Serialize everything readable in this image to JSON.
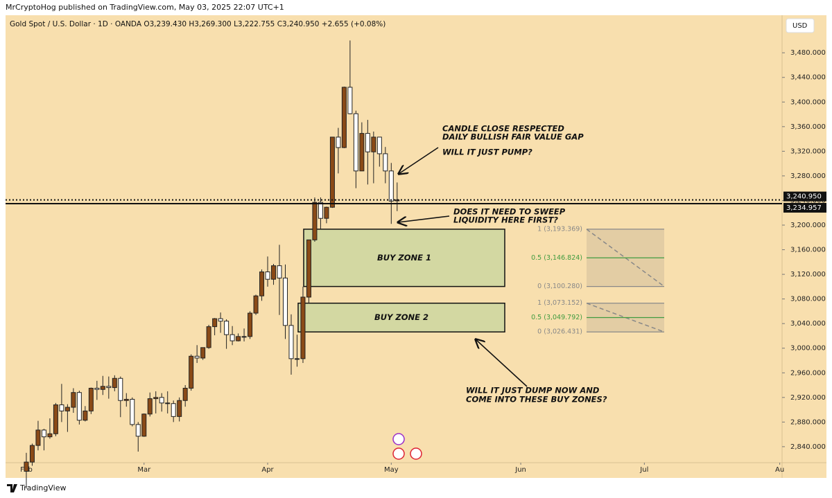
{
  "chart_data": {
    "type": "candlestick",
    "header": "MrCryptoHog published on TradingView.com, May 03, 2025 22:07 UTC+1",
    "title": "Gold Spot / U.S. Dollar · 1D · OANDA  O3,239.430  H3,269.300  L3,222.755  C3,240.950  +2.655 (+0.08%)",
    "currency": "USD",
    "brand": "TradingView",
    "up_color": "#8a4a17",
    "down_color": "#ffffff",
    "open": [
      2800,
      2815,
      2842,
      2867,
      2856,
      2861,
      2908,
      2898,
      2904,
      2928,
      2883,
      2898,
      2935,
      2933,
      2938,
      2936,
      2951,
      2915,
      2917,
      2876,
      2857,
      2893,
      2918,
      2920,
      2911,
      2910,
      2889,
      2915,
      2935,
      2987,
      2984,
      3001,
      3035,
      3048,
      3044,
      3022,
      3012,
      3019,
      3019,
      3057,
      3085,
      3124,
      3112,
      3134,
      3114,
      3037,
      2983,
      2983,
      3083,
      3176,
      3237,
      3211,
      3229,
      3343,
      3326,
      3424,
      3381,
      3288,
      3349,
      3319,
      3343,
      3316,
      3288,
      3239.43
    ],
    "high": [
      2830,
      2845,
      2882,
      2869,
      2886,
      2911,
      2942,
      2909,
      2935,
      2931,
      2906,
      2936,
      2947,
      2955,
      2954,
      2956,
      2954,
      2927,
      2920,
      2880,
      2894,
      2928,
      2930,
      2927,
      2930,
      2915,
      2920,
      2940,
      2990,
      3005,
      3001,
      3038,
      3049,
      3058,
      3047,
      3036,
      3024,
      3032,
      3060,
      3087,
      3128,
      3149,
      3137,
      3168,
      3136,
      3055,
      3022,
      3100,
      3176,
      3245,
      3245,
      3230,
      3343,
      3358,
      3425,
      3500,
      3386,
      3367,
      3371,
      3352,
      3336,
      3327,
      3301,
      3269.3
    ],
    "low": [
      2772,
      2809,
      2834,
      2834,
      2853,
      2857,
      2880,
      2864,
      2895,
      2876,
      2881,
      2893,
      2916,
      2924,
      2918,
      2930,
      2888,
      2905,
      2873,
      2832,
      2856,
      2889,
      2894,
      2897,
      2894,
      2880,
      2881,
      2905,
      2931,
      2976,
      2981,
      2999,
      3021,
      3025,
      2999,
      3005,
      3011,
      3011,
      3015,
      3054,
      3077,
      3100,
      3103,
      3054,
      3015,
      2957,
      2970,
      2976,
      3073,
      3173,
      3194,
      3203,
      3228,
      3284,
      3325,
      3380,
      3260,
      3288,
      3266,
      3268,
      3295,
      3268,
      3202,
      3222.755
    ],
    "close": [
      2815,
      2842,
      2867,
      2856,
      2861,
      2908,
      2898,
      2904,
      2928,
      2883,
      2898,
      2935,
      2933,
      2938,
      2936,
      2951,
      2915,
      2917,
      2876,
      2857,
      2893,
      2918,
      2920,
      2911,
      2910,
      2889,
      2915,
      2935,
      2987,
      2984,
      3001,
      3035,
      3048,
      3044,
      3022,
      3012,
      3019,
      3019,
      3057,
      3085,
      3124,
      3112,
      3134,
      3114,
      3037,
      2983,
      2983,
      3083,
      3176,
      3237,
      3211,
      3229,
      3343,
      3326,
      3424,
      3381,
      3288,
      3349,
      3319,
      3343,
      3316,
      3288,
      3239,
      3240.95
    ],
    "xlim": [
      -3.53,
      128.4
    ],
    "xticks": [
      {
        "value": 0,
        "label": "Feb"
      },
      {
        "value": 20,
        "label": "Mar"
      },
      {
        "value": 41,
        "label": "Apr"
      },
      {
        "value": 62,
        "label": "May"
      },
      {
        "value": 84,
        "label": "Jun"
      },
      {
        "value": 105,
        "label": "Jul"
      },
      {
        "value": 128,
        "label": "Au"
      }
    ],
    "ylim": [
      2814,
      3541
    ],
    "yticks": [
      {
        "value": 2840,
        "label": "2,840.000"
      },
      {
        "value": 2880,
        "label": "2,880.000"
      },
      {
        "value": 2920,
        "label": "2,920.000"
      },
      {
        "value": 2960,
        "label": "2,960.000"
      },
      {
        "value": 3000,
        "label": "3,000.000"
      },
      {
        "value": 3040,
        "label": "3,040.000"
      },
      {
        "value": 3080,
        "label": "3,080.000"
      },
      {
        "value": 3120,
        "label": "3,120.000"
      },
      {
        "value": 3160,
        "label": "3,160.000"
      },
      {
        "value": 3200,
        "label": "3,200.000"
      },
      {
        "value": 3240,
        "label": "3,240.000"
      },
      {
        "value": 3280,
        "label": "3,280.000"
      },
      {
        "value": 3320,
        "label": "3,320.000"
      },
      {
        "value": 3360,
        "label": "3,360.000"
      },
      {
        "value": 3400,
        "label": "3,400.000"
      },
      {
        "value": 3440,
        "label": "3,440.000"
      },
      {
        "value": 3480,
        "label": "3,480.000"
      }
    ],
    "price_lines": [
      {
        "value": 3240.95,
        "label": "3,240.950",
        "style": "dotted"
      },
      {
        "value": 3234.957,
        "label": "3,234.957",
        "style": "solid"
      }
    ],
    "zones": [
      {
        "label": "BUY ZONE 1",
        "top": 3193.369,
        "bottom": 3100.28
      },
      {
        "label": "BUY ZONE 2",
        "top": 3073.152,
        "bottom": 3026.431
      }
    ],
    "fibs": [
      {
        "levels": [
          {
            "value": 3193.369,
            "label": "1 (3,193.369)"
          },
          {
            "value": 3146.824,
            "label": "0.5 (3,146.824)"
          },
          {
            "value": 3100.28,
            "label": "0 (3,100.280)"
          }
        ]
      },
      {
        "levels": [
          {
            "value": 3073.152,
            "label": "1 (3,073.152)"
          },
          {
            "value": 3049.792,
            "label": "0.5 (3,049.792)"
          },
          {
            "value": 3026.431,
            "label": "0 (3,026.431)"
          }
        ]
      }
    ],
    "annotations": [
      "CANDLE CLOSE RESPECTED",
      "DAILY BULLISH FAIR VALUE GAP",
      "WILL IT JUST PUMP?",
      "DOES IT NEED TO SWEEP",
      "LIQUIDITY HERE FIRST?",
      "WILL IT JUST DUMP NOW AND",
      "COME INTO THESE BUY ZONES?"
    ]
  }
}
